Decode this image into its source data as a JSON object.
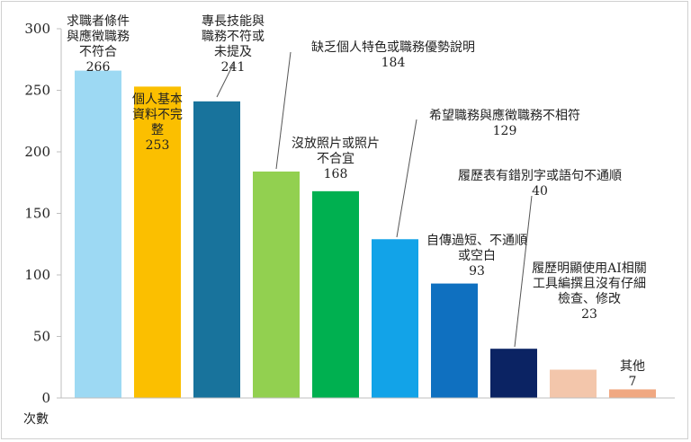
{
  "chart_data": {
    "type": "bar",
    "title": "",
    "xlabel": "",
    "ylabel": "次數",
    "ylim": [
      0,
      300
    ],
    "yticks": [
      0,
      50,
      100,
      150,
      200,
      250,
      300
    ],
    "grid": false,
    "legend": "none",
    "categories": [
      "求職者條件與應徵職務不符合",
      "個人基本資料不完整",
      "專長技能與職務不符或未提及",
      "缺乏個人特色或職務優勢說明",
      "沒放照片或照片不合宜",
      "希望職務與應徵職務不相符",
      "自傳過短、不通順或空白",
      "履歷表有錯別字或語句不通順",
      "履歷明顯使用AI相關工具編撰且沒有仔細檢查、修改",
      "其他"
    ],
    "values": [
      266,
      253,
      241,
      184,
      168,
      129,
      93,
      40,
      23,
      7
    ],
    "colors": [
      "#9dd9f3",
      "#fbbf00",
      "#18739c",
      "#92d050",
      "#00b050",
      "#12a3e8",
      "#0f70c0",
      "#0b2363",
      "#f3c6ab",
      "#f0a882"
    ],
    "label_lines": [
      [
        "求職者條件",
        "與應徵職務",
        "不符合"
      ],
      [
        "個人基本",
        "資料不完",
        "整"
      ],
      [
        "專長技能與",
        "職務不符或",
        "未提及"
      ],
      [
        "缺乏個人特色或職務優勢說明"
      ],
      [
        "沒放照片或照片",
        "不合宜"
      ],
      [
        "希望職務與應徵職務不相符"
      ],
      [
        "自傳過短、不通順",
        "或空白"
      ],
      [
        "履歷表有錯別字或語句不通順"
      ],
      [
        "履歷明顯使用AI相關",
        "工具編撰且沒有仔細",
        "檢查、修改"
      ],
      [
        "其他"
      ]
    ]
  }
}
